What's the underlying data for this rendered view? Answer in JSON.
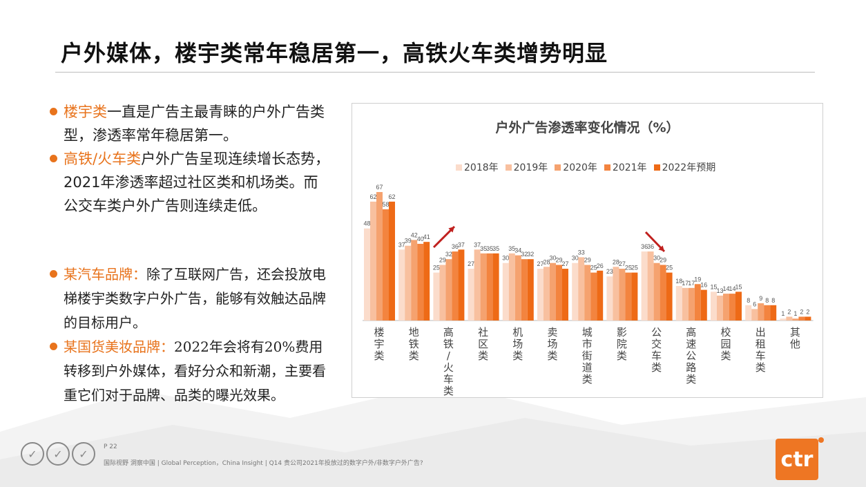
{
  "title": "户外媒体，楼宇类常年稳居第一，高铁火车类增势明显",
  "bullets": [
    {
      "highlight": "楼宇类",
      "text": "一直是广告主最青睐的户外广告类型，渗透率常年稳居第一。"
    },
    {
      "highlight": "高铁/火车类",
      "text": "户外广告呈现连续增长态势，2021年渗透率超过社区类和机场类。而公交车类户外广告则连续走低。"
    }
  ],
  "bullets2": [
    {
      "highlight": "某汽车品牌：",
      "text": "除了互联网广告，还会投放电梯楼宇类数字户外广告，能够有效触达品牌的目标用户。"
    },
    {
      "highlight": "某国货美妆品牌：",
      "text": "2022年会将有20%费用转移到户外媒体，看好分众和新潮，主要看重它们对于品牌、品类的曝光效果。"
    }
  ],
  "footer": {
    "page": "P 22",
    "text": "国际视野 洞察中国 | Global Perception，China Insight | Q14 贵公司2021年投放过的数字户外/非数字户外广告?"
  },
  "brand": "ctr",
  "colors": {
    "accent": "#e8731c",
    "series": [
      "#fbdccb",
      "#f8c09f",
      "#f5a26f",
      "#f3843f",
      "#ee6a16"
    ],
    "arrow": "#c0201e"
  },
  "chart_data": {
    "type": "bar",
    "title": "户外广告渗透率变化情况（%）",
    "categories": [
      "楼宇类",
      "地铁类",
      "高铁/火车类",
      "社区类",
      "机场类",
      "卖场类",
      "城市街道类",
      "影院类",
      "公交车类",
      "高速公路类",
      "校园类",
      "出租车类",
      "其他"
    ],
    "series": [
      {
        "name": "2018年",
        "values": [
          48,
          37,
          25,
          27,
          30,
          27,
          30,
          23,
          36,
          18,
          15,
          8,
          1
        ]
      },
      {
        "name": "2019年",
        "values": [
          62,
          39,
          29,
          37,
          35,
          28,
          33,
          28,
          36,
          17,
          13,
          6,
          2
        ]
      },
      {
        "name": "2020年",
        "values": [
          67,
          42,
          32,
          35,
          34,
          30,
          29,
          27,
          30,
          17,
          14,
          9,
          1
        ]
      },
      {
        "name": "2021年",
        "values": [
          58,
          40,
          36,
          35,
          32,
          29,
          25,
          25,
          29,
          19,
          14,
          8,
          2
        ]
      },
      {
        "name": "2022年预期",
        "values": [
          62,
          41,
          37,
          35,
          32,
          27,
          26,
          25,
          25,
          16,
          15,
          8,
          2
        ]
      }
    ],
    "ylim": [
      0,
      75
    ],
    "grid": false,
    "legend": "top"
  }
}
